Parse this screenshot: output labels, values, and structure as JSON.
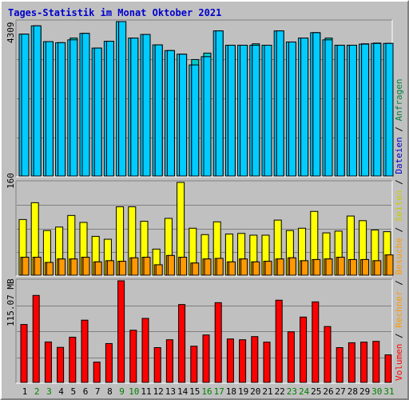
{
  "title": "Tages-Statistik im Monat Oktober 2021",
  "colors": {
    "anfragen": "#00ccff",
    "dateien": "#00cccc",
    "seiten": "#ffff00",
    "besuche": "#ff9900",
    "rechner": "#ff9900",
    "volumen": "#ff0000",
    "weekday_label": "#000000",
    "weekend_label": "#008000",
    "legend_anfragen": "#008040",
    "legend_dateien": "#0000cc",
    "legend_seiten": "#cccc00",
    "legend_besuche": "#ff9900",
    "legend_rechner": "#ff9900",
    "legend_volumen": "#ff0000"
  },
  "chart_data": [
    {
      "type": "bar",
      "ymax": 4309,
      "y_tick_label": "4309",
      "categories": [
        "1",
        "2",
        "3",
        "4",
        "5",
        "6",
        "7",
        "8",
        "9",
        "10",
        "11",
        "12",
        "13",
        "14",
        "15",
        "16",
        "17",
        "18",
        "19",
        "20",
        "21",
        "22",
        "23",
        "24",
        "25",
        "26",
        "27",
        "28",
        "29",
        "30",
        "31"
      ],
      "weekend": [
        false,
        true,
        true,
        false,
        false,
        false,
        false,
        false,
        true,
        true,
        false,
        false,
        false,
        false,
        false,
        true,
        true,
        false,
        false,
        false,
        false,
        false,
        true,
        true,
        false,
        false,
        false,
        false,
        false,
        true,
        true
      ],
      "series": [
        {
          "name": "Anfragen",
          "values": [
            3960,
            4190,
            3750,
            3720,
            3800,
            3980,
            3570,
            3760,
            4309,
            3850,
            3950,
            3660,
            3500,
            3400,
            3100,
            3330,
            4050,
            3650,
            3650,
            3650,
            3650,
            4050,
            3740,
            3850,
            4000,
            3800,
            3650,
            3650,
            3680,
            3700,
            3700
          ]
        },
        {
          "name": "Dateien",
          "values": [
            3960,
            4190,
            3750,
            3720,
            3850,
            3980,
            3570,
            3760,
            4309,
            3850,
            3950,
            3660,
            3500,
            3400,
            3250,
            3430,
            4050,
            3650,
            3650,
            3690,
            3650,
            4050,
            3740,
            3850,
            4000,
            3850,
            3650,
            3650,
            3690,
            3710,
            3700
          ]
        }
      ]
    },
    {
      "type": "bar",
      "ymax": 160,
      "y_tick_label": "160",
      "series": [
        {
          "name": "Seiten",
          "values": [
            96,
            125,
            77,
            83,
            103,
            91,
            67,
            62,
            118,
            118,
            93,
            45,
            98,
            160,
            81,
            70,
            92,
            71,
            72,
            69,
            69,
            95,
            77,
            81,
            110,
            73,
            76,
            102,
            94,
            78,
            75
          ]
        },
        {
          "name": "Besuche",
          "values": [
            31,
            31,
            22,
            28,
            28,
            31,
            23,
            25,
            24,
            30,
            31,
            18,
            34,
            31,
            21,
            28,
            29,
            23,
            28,
            23,
            24,
            28,
            30,
            25,
            27,
            28,
            31,
            27,
            27,
            25,
            35
          ]
        },
        {
          "name": "Rechner",
          "values": [
            31,
            31,
            22,
            28,
            28,
            31,
            23,
            25,
            24,
            30,
            31,
            18,
            34,
            31,
            21,
            28,
            29,
            23,
            28,
            23,
            24,
            28,
            30,
            25,
            27,
            28,
            31,
            27,
            27,
            25,
            35
          ]
        }
      ]
    },
    {
      "type": "bar",
      "ymax": 115.07,
      "y_tick_label": "115.07 MB",
      "series": [
        {
          "name": "Volumen",
          "values": [
            65.6,
            98.5,
            45.8,
            39.7,
            51.2,
            70.5,
            23.0,
            44.0,
            115.07,
            59.1,
            72.5,
            39.4,
            48.3,
            88.2,
            41.0,
            53.7,
            90.3,
            49.2,
            48.3,
            51.9,
            45.6,
            93.1,
            57.3,
            74.0,
            91.2,
            63.3,
            39.4,
            44.9,
            45.6,
            46.5,
            31.2
          ]
        }
      ]
    }
  ],
  "legend": {
    "anfragen": "Anfragen",
    "dateien": "Dateien",
    "seiten": "Seiten",
    "besuche": "Besuche",
    "rechner": "Rechner",
    "volumen": "Volumen",
    "separator": " / "
  }
}
